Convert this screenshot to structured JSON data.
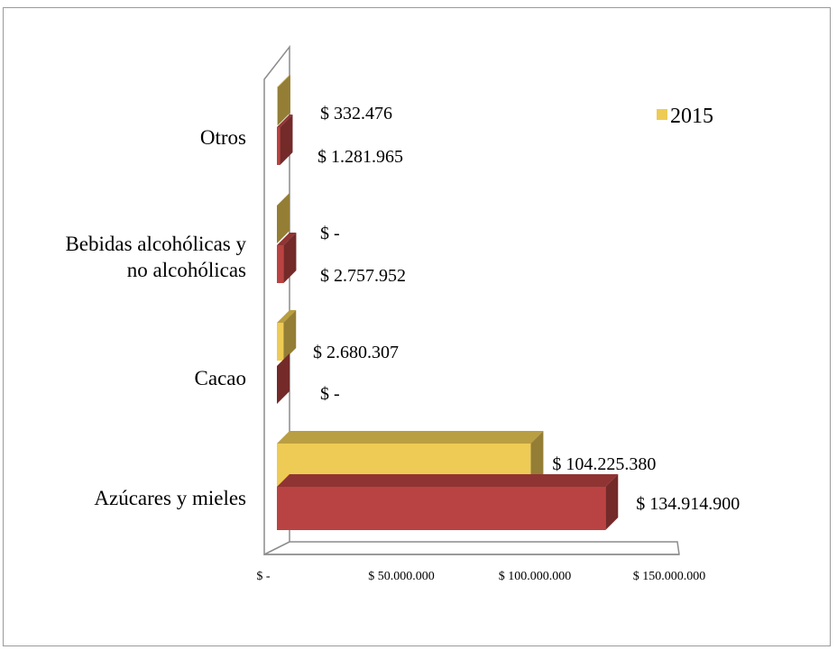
{
  "chart_data": {
    "type": "bar",
    "orientation": "horizontal",
    "three_d": true,
    "categories": [
      "Azúcares y mieles",
      "Cacao",
      "Bebidas alcohólicas y no alcohólicas",
      "Otros"
    ],
    "category_label_lines": [
      [
        "Azúcares y mieles"
      ],
      [
        "Cacao"
      ],
      [
        "Bebidas alcohólicas y",
        "no alcohólicas"
      ],
      [
        "Otros"
      ]
    ],
    "series": [
      {
        "name": "2015",
        "color": "#EECB55",
        "values": [
          104225380,
          2680307,
          0,
          332476
        ],
        "labels": [
          "$ 104.225.380",
          "$ 2.680.307",
          "$ -",
          "$ 332.476"
        ]
      },
      {
        "color": "#B94342",
        "values": [
          134914900,
          0,
          2757952,
          1281965
        ],
        "labels": [
          "$ 134.914.900",
          "$ -",
          "$ 2.757.952",
          "$ 1.281.965"
        ]
      }
    ],
    "xlim": [
      0,
      150000000
    ],
    "xticks": [
      {
        "value": 0,
        "label": "$ -"
      },
      {
        "value": 50000000,
        "label": "$ 50.000.000"
      },
      {
        "value": 100000000,
        "label": "$ 100.000.000"
      },
      {
        "value": 150000000,
        "label": "$ 150.000.000"
      }
    ],
    "legend_position": "top-right",
    "grid": false
  }
}
